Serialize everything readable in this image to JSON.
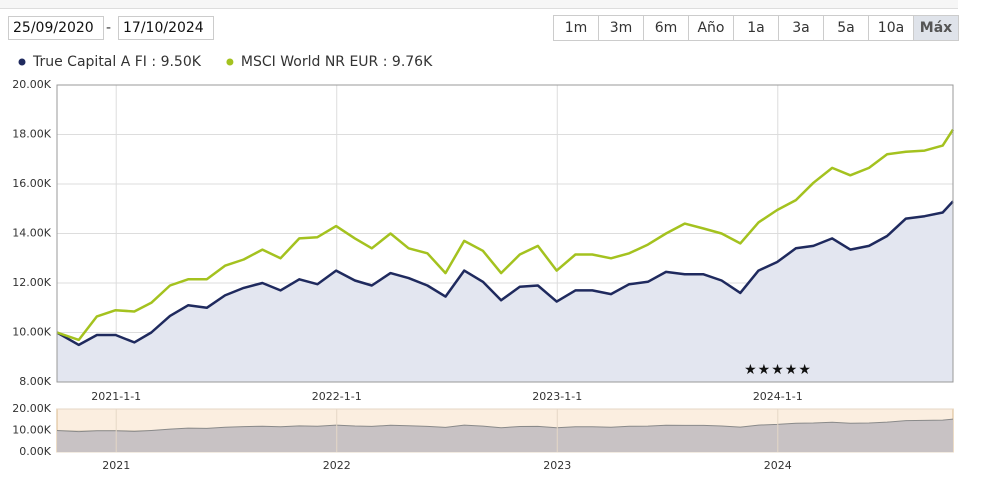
{
  "date_range": {
    "start": "25/09/2020",
    "separator": "-",
    "end": "17/10/2024"
  },
  "range_buttons": [
    "1m",
    "3m",
    "6m",
    "Año",
    "1a",
    "3a",
    "5a",
    "10a",
    "Máx"
  ],
  "active_button_index": 8,
  "chart_data": {
    "type": "line",
    "x": [
      "2020-9-25",
      "2020-10-31",
      "2020-11-30",
      "2020-12-31",
      "2021-1-31",
      "2021-2-28",
      "2021-3-31",
      "2021-4-30",
      "2021-5-31",
      "2021-6-30",
      "2021-7-31",
      "2021-8-31",
      "2021-9-30",
      "2021-10-31",
      "2021-11-30",
      "2021-12-31",
      "2022-1-31",
      "2022-2-28",
      "2022-3-31",
      "2022-4-30",
      "2022-5-31",
      "2022-6-30",
      "2022-7-31",
      "2022-8-31",
      "2022-9-30",
      "2022-10-31",
      "2022-11-30",
      "2022-12-31",
      "2023-1-31",
      "2023-2-28",
      "2023-3-31",
      "2023-4-30",
      "2023-5-31",
      "2023-6-30",
      "2023-7-31",
      "2023-8-31",
      "2023-9-30",
      "2023-10-31",
      "2023-11-30",
      "2023-12-31",
      "2024-1-31",
      "2024-2-29",
      "2024-3-31",
      "2024-4-30",
      "2024-5-31",
      "2024-6-30",
      "2024-7-31",
      "2024-8-31",
      "2024-9-30",
      "2024-10-17"
    ],
    "xlim": [
      "25/09/2020",
      "17/10/2024"
    ],
    "xticks": [
      "2021-1-1",
      "2022-1-1",
      "2023-1-1",
      "2024-1-1"
    ],
    "ylim": [
      8000,
      20000
    ],
    "yticks": [
      {
        "value": 8000,
        "label": "8.00K"
      },
      {
        "value": 10000,
        "label": "10.00K"
      },
      {
        "value": 12000,
        "label": "12.00K"
      },
      {
        "value": 14000,
        "label": "14.00K"
      },
      {
        "value": 16000,
        "label": "16.00K"
      },
      {
        "value": 18000,
        "label": "18.00K"
      },
      {
        "value": 20000,
        "label": "20.00K"
      }
    ],
    "grid": true,
    "series": [
      {
        "name": "True Capital A FI",
        "legend_value": "9.50K",
        "color": "#1f2a5e",
        "area": true,
        "values": [
          10000,
          9500,
          9900,
          9900,
          9600,
          10000,
          10670,
          11100,
          11000,
          11500,
          11800,
          12000,
          11700,
          12150,
          11950,
          12500,
          12100,
          11900,
          12400,
          12200,
          11900,
          11450,
          12500,
          12050,
          11300,
          11850,
          11900,
          11250,
          11700,
          11700,
          11550,
          11950,
          12050,
          12450,
          12350,
          12350,
          12100,
          11600,
          12500,
          12850,
          13400,
          13500,
          13800,
          13350,
          13500,
          13900,
          14600,
          14700,
          14850,
          15300
        ]
      },
      {
        "name": "MSCI World NR EUR",
        "legend_value": "9.76K",
        "color": "#a4c21f",
        "area": false,
        "values": [
          10000,
          9700,
          10650,
          10900,
          10850,
          11200,
          11900,
          12150,
          12150,
          12700,
          12950,
          13350,
          13000,
          13800,
          13850,
          14300,
          13800,
          13400,
          14000,
          13400,
          13200,
          12400,
          13700,
          13300,
          12400,
          13150,
          13500,
          12500,
          13150,
          13150,
          13000,
          13200,
          13550,
          14000,
          14400,
          14200,
          14000,
          13600,
          14450,
          14950,
          15350,
          16050,
          16650,
          16350,
          16650,
          17200,
          17300,
          17350,
          17550,
          18200
        ]
      }
    ],
    "annotation": "★★★★★",
    "navigator": {
      "series_index": 0,
      "ylim": [
        0,
        20000
      ],
      "yticks": [
        {
          "value": 0,
          "label": "0.00K"
        },
        {
          "value": 10000,
          "label": "10.00K"
        },
        {
          "value": 20000,
          "label": "20.00K"
        }
      ],
      "xticks": [
        "2021",
        "2022",
        "2023",
        "2024"
      ]
    }
  }
}
